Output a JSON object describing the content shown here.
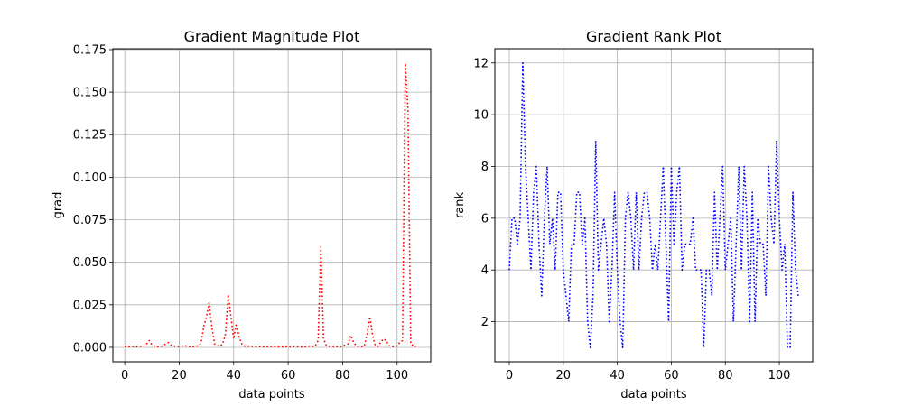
{
  "chart_data": [
    {
      "type": "line",
      "title": "Gradient Magnitude Plot",
      "xlabel": "data points",
      "ylabel": "grad",
      "xlim": [
        -4.35,
        112.35
      ],
      "ylim": [
        -0.0085,
        0.1755
      ],
      "xticks": [
        0,
        20,
        40,
        60,
        80,
        100
      ],
      "yticks": [
        0.0,
        0.025,
        0.05,
        0.075,
        0.1,
        0.125,
        0.15,
        0.175
      ],
      "ytick_labels": [
        "0.000",
        "0.025",
        "0.050",
        "0.075",
        "0.100",
        "0.125",
        "0.150",
        "0.175"
      ],
      "grid": true,
      "line_style": "dotted",
      "color": "#ff0000",
      "series": [
        {
          "x": [
            0,
            1,
            2,
            3,
            4,
            5,
            6,
            7,
            8,
            9,
            10,
            11,
            12,
            13,
            14,
            15,
            16,
            17,
            18,
            19,
            20,
            21,
            22,
            23,
            24,
            25,
            26,
            27,
            28,
            29,
            30,
            31,
            32,
            33,
            34,
            35,
            36,
            37,
            38,
            39,
            40,
            41,
            42,
            43,
            44,
            45,
            46,
            47,
            48,
            49,
            50,
            51,
            52,
            53,
            54,
            55,
            56,
            57,
            58,
            59,
            60,
            61,
            62,
            63,
            64,
            65,
            66,
            67,
            68,
            69,
            70,
            71,
            72,
            73,
            74,
            75,
            76,
            77,
            78,
            79,
            80,
            81,
            82,
            83,
            84,
            85,
            86,
            87,
            88,
            89,
            90,
            91,
            92,
            93,
            94,
            95,
            96,
            97,
            98,
            99,
            100,
            101,
            102,
            103,
            104,
            105,
            106,
            107
          ],
          "values": [
            0.0005,
            0.0005,
            0.0003,
            0.0004,
            0.0003,
            0.0005,
            0.0006,
            0.0005,
            0.002,
            0.004,
            0.0015,
            0.0007,
            0.0003,
            0.0005,
            0.0008,
            0.002,
            0.0028,
            0.0013,
            0.0008,
            0.0005,
            0.0005,
            0.0008,
            0.001,
            0.0005,
            0.0004,
            0.0004,
            0.0005,
            0.0009,
            0.0025,
            0.012,
            0.018,
            0.026,
            0.012,
            0.002,
            0.001,
            0.0008,
            0.002,
            0.008,
            0.031,
            0.018,
            0.005,
            0.014,
            0.006,
            0.002,
            0.0007,
            0.0008,
            0.0005,
            0.0006,
            0.0004,
            0.0004,
            0.0004,
            0.0003,
            0.0004,
            0.0003,
            0.0005,
            0.0003,
            0.0004,
            0.0003,
            0.0003,
            0.0004,
            0.0003,
            0.0003,
            0.0004,
            0.0004,
            0.0003,
            0.0003,
            0.0003,
            0.0005,
            0.0008,
            0.0005,
            0.001,
            0.004,
            0.059,
            0.005,
            0.0012,
            0.0006,
            0.0005,
            0.0005,
            0.0004,
            0.0004,
            0.0007,
            0.0014,
            0.002,
            0.007,
            0.003,
            0.0009,
            0.0005,
            0.0005,
            0.0008,
            0.008,
            0.018,
            0.007,
            0.001,
            0.0006,
            0.003,
            0.005,
            0.004,
            0.001,
            0.0005,
            0.0004,
            0.0008,
            0.003,
            0.004,
            0.167,
            0.14,
            0.002,
            0.001,
            0.0005
          ]
        }
      ]
    },
    {
      "type": "line",
      "title": "Gradient Rank Plot",
      "xlabel": "data points",
      "ylabel": "rank",
      "xlim": [
        -5.35,
        112.35
      ],
      "ylim": [
        0.45,
        12.55
      ],
      "xticks": [
        0,
        20,
        40,
        60,
        80,
        100
      ],
      "yticks": [
        2,
        4,
        6,
        8,
        10,
        12
      ],
      "ytick_labels": [
        "2",
        "4",
        "6",
        "8",
        "10",
        "12"
      ],
      "grid": true,
      "line_style": "dotted",
      "color": "#0000ff",
      "series": [
        {
          "x": [
            0,
            1,
            2,
            3,
            4,
            5,
            6,
            7,
            8,
            9,
            10,
            11,
            12,
            13,
            14,
            15,
            16,
            17,
            18,
            19,
            20,
            21,
            22,
            23,
            24,
            25,
            26,
            27,
            28,
            29,
            30,
            31,
            32,
            33,
            34,
            35,
            36,
            37,
            38,
            39,
            40,
            41,
            42,
            43,
            44,
            45,
            46,
            47,
            48,
            49,
            50,
            51,
            52,
            53,
            54,
            55,
            56,
            57,
            58,
            59,
            60,
            61,
            62,
            63,
            64,
            65,
            66,
            67,
            68,
            69,
            70,
            71,
            72,
            73,
            74,
            75,
            76,
            77,
            78,
            79,
            80,
            81,
            82,
            83,
            84,
            85,
            86,
            87,
            88,
            89,
            90,
            91,
            92,
            93,
            94,
            95,
            96,
            97,
            98,
            99,
            100,
            101,
            102,
            103,
            104,
            105,
            106,
            107
          ],
          "values": [
            4,
            6,
            6,
            5,
            6,
            12,
            8,
            6,
            4,
            7,
            8,
            5,
            3,
            6,
            8,
            5,
            6,
            4,
            7,
            7,
            4,
            3,
            2,
            5,
            5,
            7,
            7,
            5,
            6,
            2,
            1,
            3,
            9,
            4,
            5,
            6,
            5,
            2,
            4,
            7,
            4,
            2,
            1,
            6,
            7,
            6,
            4,
            7,
            4,
            6,
            7,
            7,
            6,
            4,
            5,
            4,
            6,
            8,
            5,
            2,
            8,
            5,
            7,
            8,
            4,
            5,
            5,
            5,
            6,
            4,
            4,
            4,
            1,
            4,
            4,
            3,
            7,
            4,
            6,
            8,
            4,
            5,
            6,
            2,
            5,
            8,
            4,
            8,
            6,
            2,
            7,
            2,
            6,
            5,
            5,
            3,
            8,
            6,
            5,
            9,
            6,
            4,
            5,
            1,
            1,
            7,
            4,
            3
          ]
        }
      ]
    }
  ]
}
